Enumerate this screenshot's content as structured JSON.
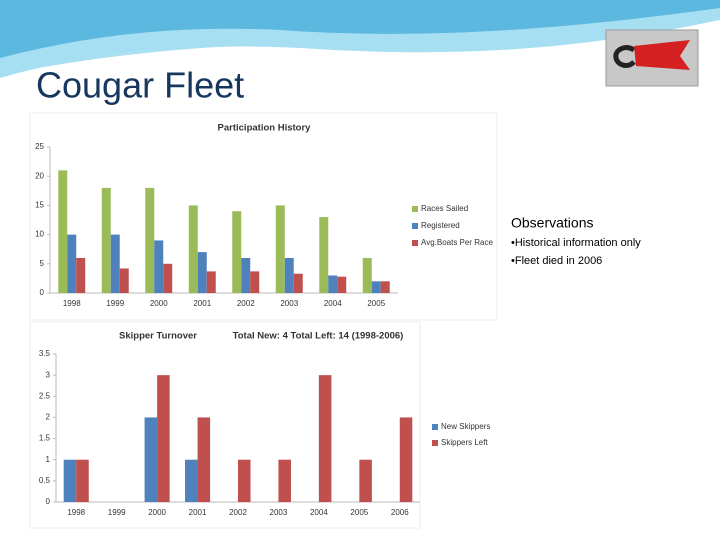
{
  "title": "Cougar Fleet",
  "observations": {
    "heading": "Observations",
    "bullets": [
      "•Historical information only",
      "•Fleet died in 2006"
    ]
  },
  "chart_data": [
    {
      "type": "bar",
      "title": "Participation History",
      "categories": [
        "1998",
        "1999",
        "2000",
        "2001",
        "2002",
        "2003",
        "2004",
        "2005"
      ],
      "series": [
        {
          "name": "Races Sailed",
          "color": "#9bbb59",
          "values": [
            21,
            18,
            18,
            15,
            14,
            15,
            13,
            6
          ]
        },
        {
          "name": "Registered",
          "color": "#4f81bd",
          "values": [
            10,
            10,
            9,
            7,
            6,
            6,
            3,
            2
          ]
        },
        {
          "name": "Avg.Boats Per Race",
          "color": "#c0504d",
          "values": [
            6,
            4.2,
            5,
            3.7,
            3.7,
            3.3,
            2.8,
            2
          ]
        }
      ],
      "ylim": [
        0,
        25
      ],
      "yticks": [
        0,
        5,
        10,
        15,
        20,
        25
      ],
      "legend": "right"
    },
    {
      "type": "bar",
      "title": "Skipper Turnover",
      "subtitle": "Total New: 4  Total Left: 14  (1998-2006)",
      "categories": [
        "1998",
        "1999",
        "2000",
        "2001",
        "2002",
        "2003",
        "2004",
        "2005",
        "2006"
      ],
      "series": [
        {
          "name": "New Skippers",
          "color": "#4f81bd",
          "values": [
            1,
            0,
            2,
            1,
            0,
            0,
            0,
            0,
            0
          ]
        },
        {
          "name": "Skippers Left",
          "color": "#c0504d",
          "values": [
            1,
            0,
            3,
            2,
            1,
            1,
            3,
            1,
            2
          ]
        }
      ],
      "ylim": [
        0,
        3.5
      ],
      "yticks": [
        0,
        0.5,
        1,
        1.5,
        2,
        2.5,
        3,
        3.5
      ],
      "legend": "right"
    }
  ]
}
